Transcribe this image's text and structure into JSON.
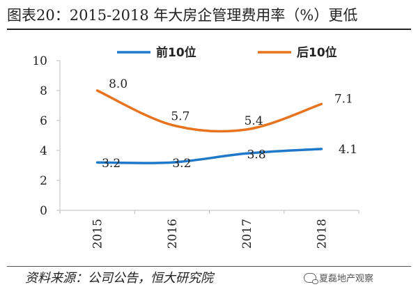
{
  "title": "图表20：2015-2018 年大房企管理费用率（%）更低",
  "source": "资料来源：公司公告，恒大研究院",
  "brand": "夏磊地产观察",
  "brand_icon": "wechat-icon",
  "chart_data": {
    "type": "line",
    "categories": [
      "2015",
      "2016",
      "2017",
      "2018"
    ],
    "series": [
      {
        "name": "前10位",
        "values": [
          3.2,
          3.2,
          3.8,
          4.1
        ],
        "labels": [
          "3.2",
          "3.2",
          "3.8",
          "4.1"
        ],
        "color": "#1f78c8"
      },
      {
        "name": "后10位",
        "values": [
          8.0,
          5.7,
          5.4,
          7.1
        ],
        "labels": [
          "8.0",
          "5.7",
          "5.4",
          "7.1"
        ],
        "color": "#e8731e"
      }
    ],
    "ylim": [
      0,
      10
    ],
    "yticks": [
      "0",
      "2",
      "4",
      "6",
      "8",
      "10"
    ],
    "legend_position": "top",
    "grid": false,
    "smooth": true
  }
}
